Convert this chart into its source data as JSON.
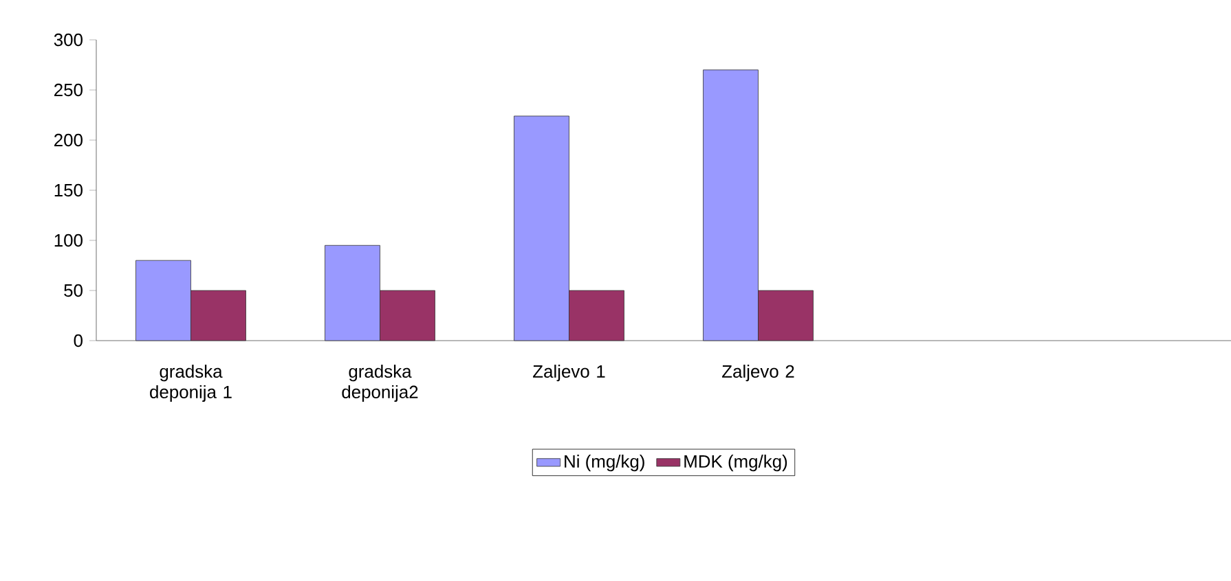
{
  "chart_data": {
    "type": "bar",
    "categories": [
      "gradska deponija 1",
      "gradska deponija2",
      "Zaljevo 1",
      "Zaljevo 2",
      null,
      null
    ],
    "series": [
      {
        "name": "Ni (mg/kg)",
        "color": "#9999ff",
        "values": [
          80,
          95,
          224,
          270,
          null,
          null
        ]
      },
      {
        "name": "MDK (mg/kg)",
        "color": "#993366",
        "values": [
          50,
          50,
          50,
          50,
          null,
          null
        ]
      }
    ],
    "ylim": [
      0,
      300
    ],
    "yticks": [
      0,
      50,
      100,
      150,
      200,
      250,
      300
    ],
    "grid": false,
    "legend": "bottom"
  }
}
